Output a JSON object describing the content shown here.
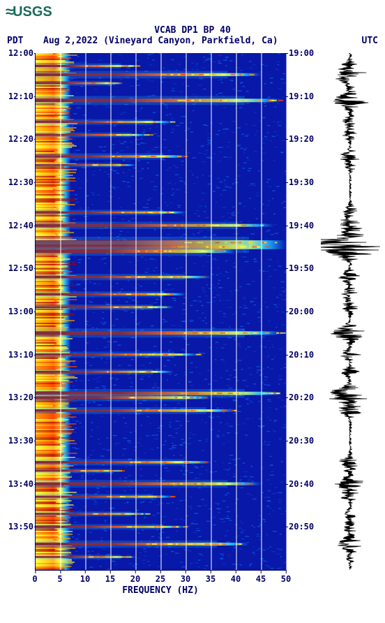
{
  "logo": {
    "text": "USGS"
  },
  "header": {
    "title": "VCAB DP1 BP 40",
    "pdt": "PDT",
    "date_loc": "Aug 2,2022 (Vineyard Canyon, Parkfield, Ca)",
    "utc": "UTC"
  },
  "spectrogram": {
    "type": "spectrogram",
    "xlabel": "FREQUENCY (HZ)",
    "xlim": [
      0,
      50
    ],
    "xticks": [
      0,
      5,
      10,
      15,
      20,
      25,
      30,
      35,
      40,
      45,
      50
    ],
    "y_left_ticks": [
      "12:00",
      "12:10",
      "12:20",
      "12:30",
      "12:40",
      "12:50",
      "13:00",
      "13:10",
      "13:20",
      "13:30",
      "13:40",
      "13:50"
    ],
    "y_right_ticks": [
      "19:00",
      "19:10",
      "19:20",
      "19:30",
      "19:40",
      "19:50",
      "20:00",
      "20:10",
      "20:20",
      "20:30",
      "20:40",
      "20:50"
    ],
    "time_span_minutes": 120,
    "tick_interval_min": 10,
    "grid_color": "#ffffff",
    "tick_label_color": "#000066",
    "axis_color": "#000066",
    "background_color": "#0818a8",
    "colormap": [
      "#071891",
      "#0818a8",
      "#0d3fd6",
      "#0f6dff",
      "#1fb4ff",
      "#77e0ff",
      "#ffff44",
      "#ffb000",
      "#ff4800",
      "#a40000"
    ],
    "low_freq_band_width_pct": 14,
    "events_minutes": [
      {
        "t": 3,
        "amp": 0.3,
        "extent": 0.4
      },
      {
        "t": 5,
        "amp": 0.55,
        "extent": 0.9
      },
      {
        "t": 7,
        "amp": 0.25,
        "extent": 0.35
      },
      {
        "t": 11,
        "amp": 0.7,
        "extent": 0.98
      },
      {
        "t": 16,
        "amp": 0.3,
        "extent": 0.55
      },
      {
        "t": 19,
        "amp": 0.25,
        "extent": 0.45
      },
      {
        "t": 24,
        "amp": 0.4,
        "extent": 0.6
      },
      {
        "t": 26,
        "amp": 0.2,
        "extent": 0.4
      },
      {
        "t": 37,
        "amp": 0.3,
        "extent": 0.6
      },
      {
        "t": 40,
        "amp": 0.5,
        "extent": 0.95
      },
      {
        "t": 44,
        "amp": 1.0,
        "extent": 1.0
      },
      {
        "t": 45,
        "amp": 1.0,
        "extent": 1.0
      },
      {
        "t": 46,
        "amp": 0.7,
        "extent": 0.8
      },
      {
        "t": 52,
        "amp": 0.4,
        "extent": 0.7
      },
      {
        "t": 56,
        "amp": 0.35,
        "extent": 0.6
      },
      {
        "t": 59,
        "amp": 0.3,
        "extent": 0.55
      },
      {
        "t": 65,
        "amp": 0.7,
        "extent": 0.98
      },
      {
        "t": 70,
        "amp": 0.35,
        "extent": 0.65
      },
      {
        "t": 74,
        "amp": 0.3,
        "extent": 0.55
      },
      {
        "t": 79,
        "amp": 0.65,
        "extent": 0.98
      },
      {
        "t": 80,
        "amp": 0.5,
        "extent": 0.7
      },
      {
        "t": 83,
        "amp": 0.45,
        "extent": 0.8
      },
      {
        "t": 95,
        "amp": 0.4,
        "extent": 0.7
      },
      {
        "t": 97,
        "amp": 0.2,
        "extent": 0.35
      },
      {
        "t": 100,
        "amp": 0.55,
        "extent": 0.9
      },
      {
        "t": 103,
        "amp": 0.3,
        "extent": 0.55
      },
      {
        "t": 107,
        "amp": 0.25,
        "extent": 0.45
      },
      {
        "t": 110,
        "amp": 0.3,
        "extent": 0.6
      },
      {
        "t": 114,
        "amp": 0.5,
        "extent": 0.85
      },
      {
        "t": 117,
        "amp": 0.2,
        "extent": 0.4
      }
    ]
  },
  "waveform": {
    "type": "seismogram",
    "color": "#000000",
    "background": "#ffffff",
    "baseline_noise": 0.05
  }
}
